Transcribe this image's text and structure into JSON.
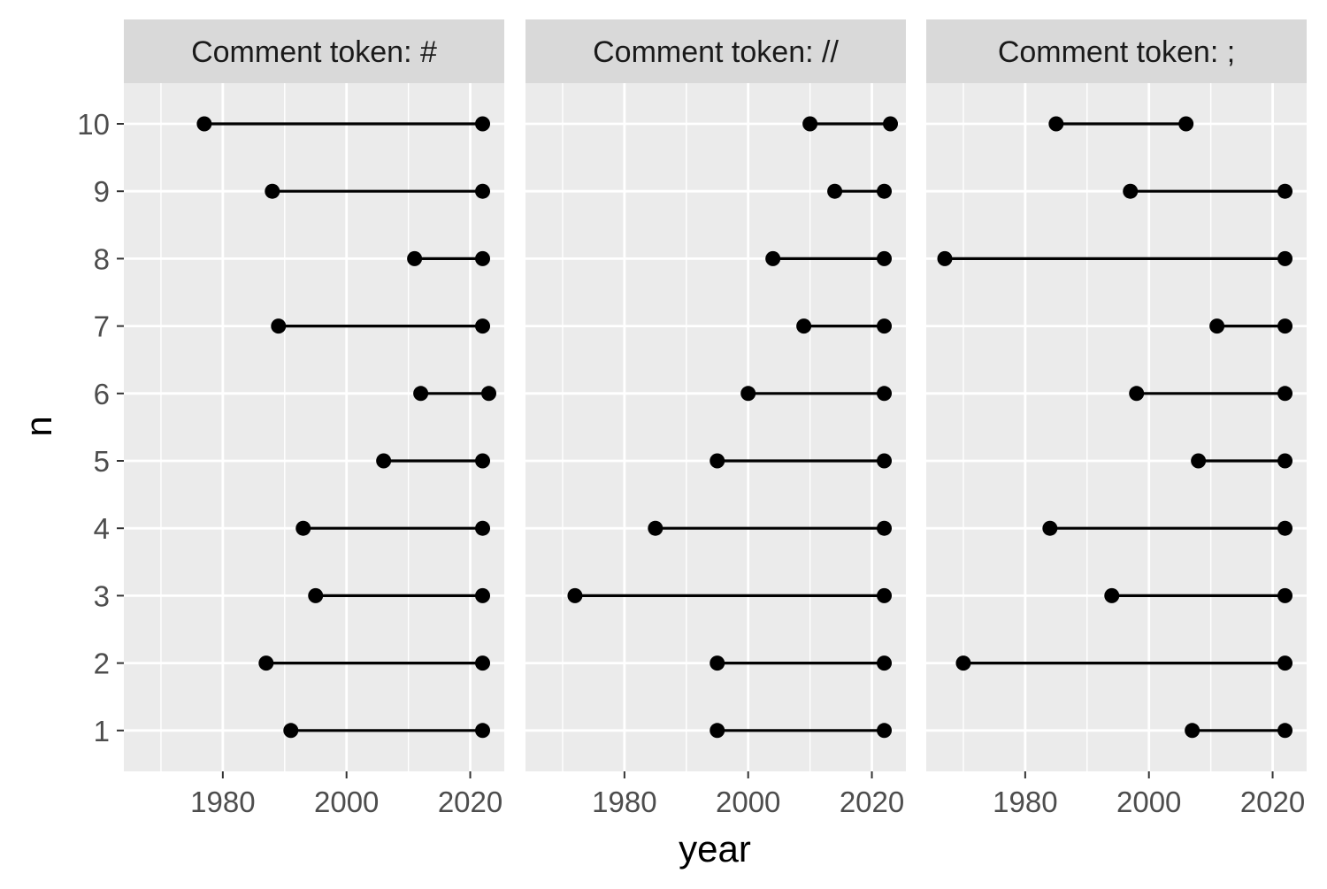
{
  "chart_data": {
    "type": "dumbbell",
    "xlabel": "year",
    "ylabel": "n",
    "y_categories": [
      1,
      2,
      3,
      4,
      5,
      6,
      7,
      8,
      9,
      10
    ],
    "x_ticks": [
      1980,
      2000,
      2020
    ],
    "xlim": [
      1964,
      2025.5
    ],
    "grid": true,
    "panels": [
      {
        "title": "Comment token: #",
        "segments": [
          {
            "n": 10,
            "start": 1977,
            "end": 2022
          },
          {
            "n": 9,
            "start": 1988,
            "end": 2022
          },
          {
            "n": 8,
            "start": 2011,
            "end": 2022
          },
          {
            "n": 7,
            "start": 1989,
            "end": 2022
          },
          {
            "n": 6,
            "start": 2012,
            "end": 2023
          },
          {
            "n": 5,
            "start": 2006,
            "end": 2022
          },
          {
            "n": 4,
            "start": 1993,
            "end": 2022
          },
          {
            "n": 3,
            "start": 1995,
            "end": 2022
          },
          {
            "n": 2,
            "start": 1987,
            "end": 2022
          },
          {
            "n": 1,
            "start": 1991,
            "end": 2022
          }
        ]
      },
      {
        "title": "Comment token: //",
        "segments": [
          {
            "n": 10,
            "start": 2010,
            "end": 2023
          },
          {
            "n": 9,
            "start": 2014,
            "end": 2022
          },
          {
            "n": 8,
            "start": 2004,
            "end": 2022
          },
          {
            "n": 7,
            "start": 2009,
            "end": 2022
          },
          {
            "n": 6,
            "start": 2000,
            "end": 2022
          },
          {
            "n": 5,
            "start": 1995,
            "end": 2022
          },
          {
            "n": 4,
            "start": 1985,
            "end": 2022
          },
          {
            "n": 3,
            "start": 1972,
            "end": 2022
          },
          {
            "n": 2,
            "start": 1995,
            "end": 2022
          },
          {
            "n": 1,
            "start": 1995,
            "end": 2022
          }
        ]
      },
      {
        "title": "Comment token: ;",
        "segments": [
          {
            "n": 10,
            "start": 1985,
            "end": 2006
          },
          {
            "n": 9,
            "start": 1997,
            "end": 2022
          },
          {
            "n": 8,
            "start": 1967,
            "end": 2022
          },
          {
            "n": 7,
            "start": 2011,
            "end": 2022
          },
          {
            "n": 6,
            "start": 1998,
            "end": 2022
          },
          {
            "n": 5,
            "start": 2008,
            "end": 2022
          },
          {
            "n": 4,
            "start": 1984,
            "end": 2022
          },
          {
            "n": 3,
            "start": 1994,
            "end": 2022
          },
          {
            "n": 2,
            "start": 1970,
            "end": 2022
          },
          {
            "n": 1,
            "start": 2007,
            "end": 2022
          }
        ]
      }
    ],
    "colors": {
      "panel_background": "#ebebeb",
      "strip_background": "#d9d9d9",
      "grid": "#ffffff",
      "marks": "#000000"
    }
  }
}
